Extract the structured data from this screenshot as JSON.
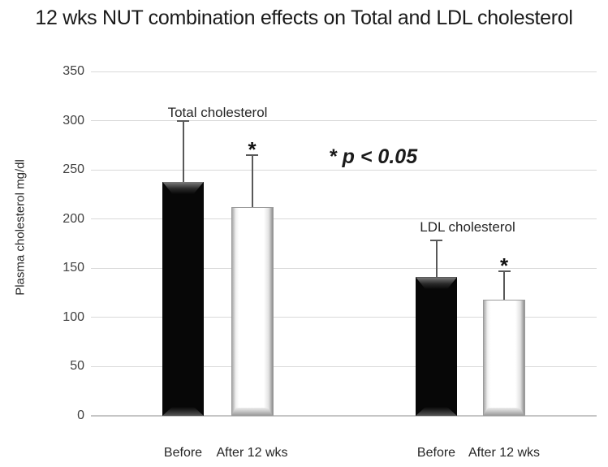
{
  "chart_data": {
    "type": "bar",
    "title": "12 wks NUT combination effects on Total and LDL cholesterol",
    "ylabel": "Plasma cholesterol mg/dl",
    "xlabel": "",
    "ylim": [
      0,
      350
    ],
    "yticks": [
      0,
      50,
      100,
      150,
      200,
      250,
      300,
      350
    ],
    "grid": true,
    "legend_position": "none",
    "annotation": "* p < 0.05",
    "significance_marker": "*",
    "groups": [
      {
        "name": "Total cholesterol",
        "bars": [
          {
            "category": "Before",
            "value": 238,
            "error_top": 300,
            "fill": "black",
            "significant": false
          },
          {
            "category": "After 12 wks",
            "value": 212,
            "error_top": 265,
            "fill": "white",
            "significant": true
          }
        ]
      },
      {
        "name": "LDL cholesterol",
        "bars": [
          {
            "category": "Before",
            "value": 141,
            "error_top": 178,
            "fill": "black",
            "significant": false
          },
          {
            "category": "After 12 wks",
            "value": 118,
            "error_top": 147,
            "fill": "white",
            "significant": true
          }
        ]
      }
    ],
    "colors": {
      "bar_black": "#070707",
      "bar_white": "#ffffff",
      "gridline": "#d9d9d9",
      "axis_line": "#c6c6c6",
      "error_bar": "#595959",
      "title_text": "#1a1a1a",
      "tick_text": "#404040"
    }
  }
}
